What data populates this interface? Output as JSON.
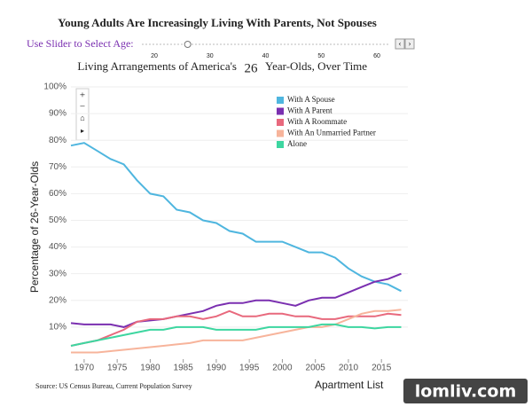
{
  "chart_data": {
    "type": "line",
    "title": "Young Adults Are Increasingly Living With Parents, Not Spouses",
    "slider": {
      "label": "Use Slider to Select Age:",
      "ticks": [
        20,
        30,
        40,
        50,
        60
      ]
    },
    "age": 26,
    "subtitle_before": "Living Arrangements of America's",
    "subtitle_after": "Year-Olds, Over Time",
    "y_label": "Percentage of 26-Year-Olds",
    "source": "Source: US Census Bureau, Current Population Survey",
    "logo": "Apartment List",
    "watermark": "lomliv.com",
    "x": [
      1968,
      1970,
      1972,
      1974,
      1976,
      1978,
      1980,
      1982,
      1984,
      1986,
      1988,
      1990,
      1992,
      1994,
      1996,
      1998,
      2000,
      2002,
      2004,
      2006,
      2008,
      2010,
      2012,
      2014,
      2016,
      2018
    ],
    "xlim": [
      1968,
      2019
    ],
    "xticks": [
      1970,
      1975,
      1980,
      1985,
      1990,
      1995,
      2000,
      2005,
      2010,
      2015
    ],
    "ylim": [
      -2,
      100
    ],
    "yticks": [
      {
        "value": 10,
        "label": "10%"
      },
      {
        "value": 20,
        "label": "20%"
      },
      {
        "value": 30,
        "label": "30%"
      },
      {
        "value": 40,
        "label": "40%"
      },
      {
        "value": 50,
        "label": "50%"
      },
      {
        "value": 60,
        "label": "60%"
      },
      {
        "value": 70,
        "label": "70%"
      },
      {
        "value": 80,
        "label": "80%"
      },
      {
        "value": 90,
        "label": "90%"
      },
      {
        "value": 100,
        "label": "100%"
      }
    ],
    "grid": true,
    "series": [
      {
        "name": "With A Spouse",
        "color": "#4fb6df",
        "values": [
          78,
          79,
          76,
          73,
          71,
          65,
          60,
          59,
          54,
          53,
          50,
          49,
          46,
          45,
          42,
          42,
          42,
          40,
          38,
          38,
          36,
          32,
          29,
          27,
          26,
          23.5
        ]
      },
      {
        "name": "With A Parent",
        "color": "#7a2fb0",
        "values": [
          11.5,
          11,
          11,
          11,
          10,
          12,
          12.5,
          13,
          14,
          15,
          16,
          18,
          19,
          19,
          20,
          20,
          19,
          18,
          20,
          21,
          21,
          23,
          25,
          27,
          28,
          30
        ]
      },
      {
        "name": "With A Roommate",
        "color": "#e8697d",
        "values": [
          3,
          4,
          5,
          7,
          9,
          12,
          13,
          13,
          14,
          14,
          13,
          14,
          16,
          14,
          14,
          15,
          15,
          14,
          14,
          13,
          13,
          14,
          14,
          14,
          15,
          14.5
        ]
      },
      {
        "name": "With An Unmarried Partner",
        "color": "#f7b49b",
        "values": [
          0.5,
          0.5,
          0.5,
          1,
          1.5,
          2,
          2.5,
          3,
          3.5,
          4,
          5,
          5,
          5,
          5,
          6,
          7,
          8,
          9,
          10,
          10,
          11,
          13,
          15,
          16,
          16,
          16.5
        ]
      },
      {
        "name": "Alone",
        "color": "#3dd6a0",
        "values": [
          3,
          4,
          5,
          6,
          7,
          8,
          9,
          9,
          10,
          10,
          10,
          9,
          9,
          9,
          9,
          10,
          10,
          10,
          10,
          11,
          11,
          10,
          10,
          9.5,
          10,
          10
        ]
      }
    ]
  }
}
